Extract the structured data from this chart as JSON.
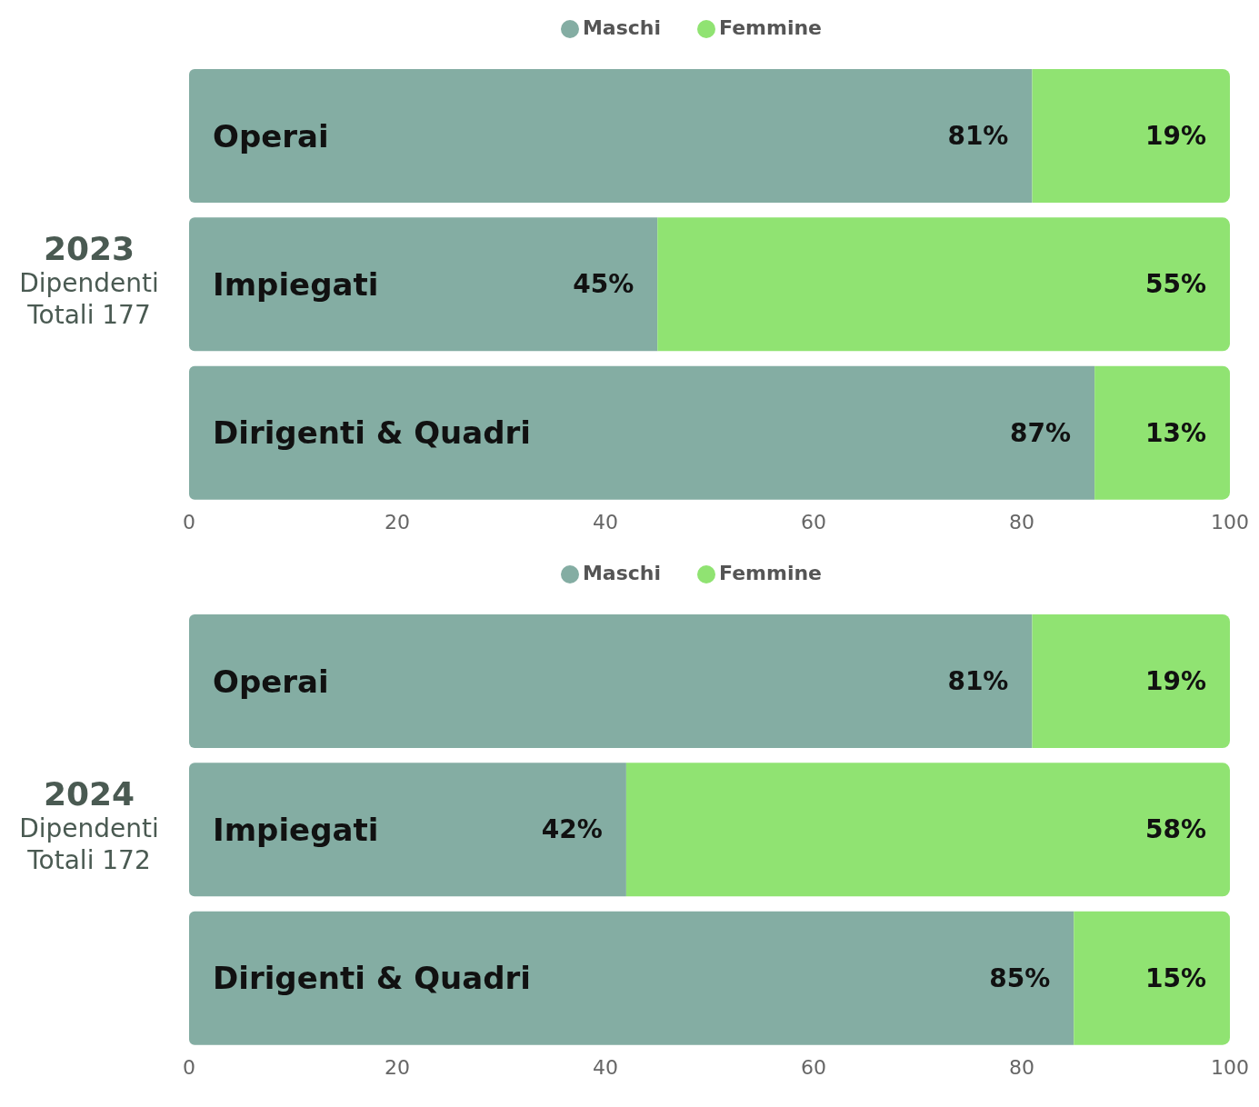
{
  "chart_data": [
    {
      "type": "bar",
      "orientation": "horizontal",
      "stacked": true,
      "title": "2023",
      "subtitle": "Dipendenti Totali 177",
      "categories": [
        "Operai",
        "Impiegati",
        "Dirigenti & Quadri"
      ],
      "series": [
        {
          "name": "Maschi",
          "color": "#84ada3",
          "values": [
            81,
            45,
            87
          ],
          "value_labels": [
            "81%",
            "45%",
            "87%"
          ]
        },
        {
          "name": "Femmine",
          "color": "#90e372",
          "values": [
            19,
            55,
            13
          ],
          "value_labels": [
            "19%",
            "55%",
            "13%"
          ]
        }
      ],
      "xlim": [
        0,
        100
      ],
      "xticks": [
        0,
        20,
        40,
        60,
        80,
        100
      ],
      "legend": "top",
      "grid": false,
      "tick_labels": "x"
    },
    {
      "type": "bar",
      "orientation": "horizontal",
      "stacked": true,
      "title": "2024",
      "subtitle": "Dipendenti Totali 172",
      "categories": [
        "Operai",
        "Impiegati",
        "Dirigenti & Quadri"
      ],
      "series": [
        {
          "name": "Maschi",
          "color": "#84ada3",
          "values": [
            81,
            42,
            85
          ],
          "value_labels": [
            "81%",
            "42%",
            "85%"
          ]
        },
        {
          "name": "Femmine",
          "color": "#90e372",
          "values": [
            19,
            58,
            15
          ],
          "value_labels": [
            "19%",
            "58%",
            "15%"
          ]
        }
      ],
      "xlim": [
        0,
        100
      ],
      "xticks": [
        0,
        20,
        40,
        60,
        80,
        100
      ],
      "legend": "top",
      "grid": false,
      "tick_labels": "x"
    }
  ]
}
